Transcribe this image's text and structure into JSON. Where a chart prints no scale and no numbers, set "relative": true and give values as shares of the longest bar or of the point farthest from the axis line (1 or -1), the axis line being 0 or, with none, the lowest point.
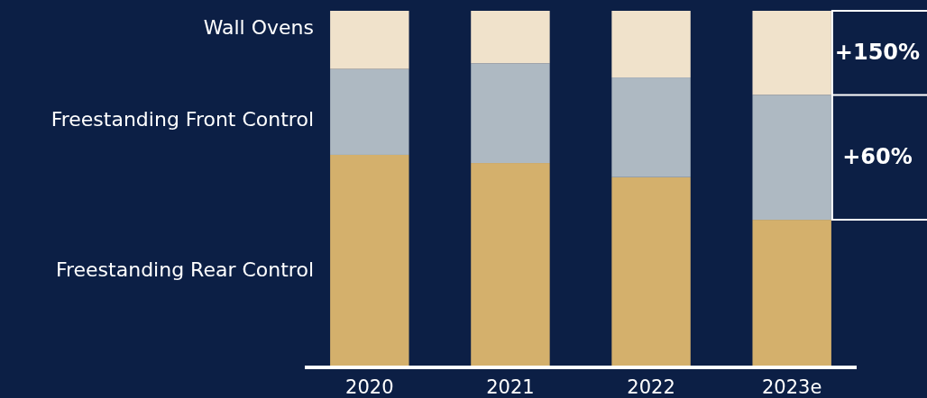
{
  "chart_data": {
    "type": "bar",
    "stacked": true,
    "relative": true,
    "categories": [
      "2020",
      "2021",
      "2022",
      "2023e"
    ],
    "series": [
      {
        "name": "Freestanding Rear Control",
        "color": "#d4b06c",
        "values": [
          0.594,
          0.571,
          0.531,
          0.411
        ]
      },
      {
        "name": "Freestanding Front Control",
        "color": "#aeb9c2",
        "values": [
          0.242,
          0.281,
          0.281,
          0.352
        ]
      },
      {
        "name": "Wall Ovens",
        "color": "#f0e2cb",
        "values": [
          0.164,
          0.148,
          0.188,
          0.237
        ]
      }
    ],
    "annotations": [
      "+150%",
      "+60%"
    ]
  }
}
